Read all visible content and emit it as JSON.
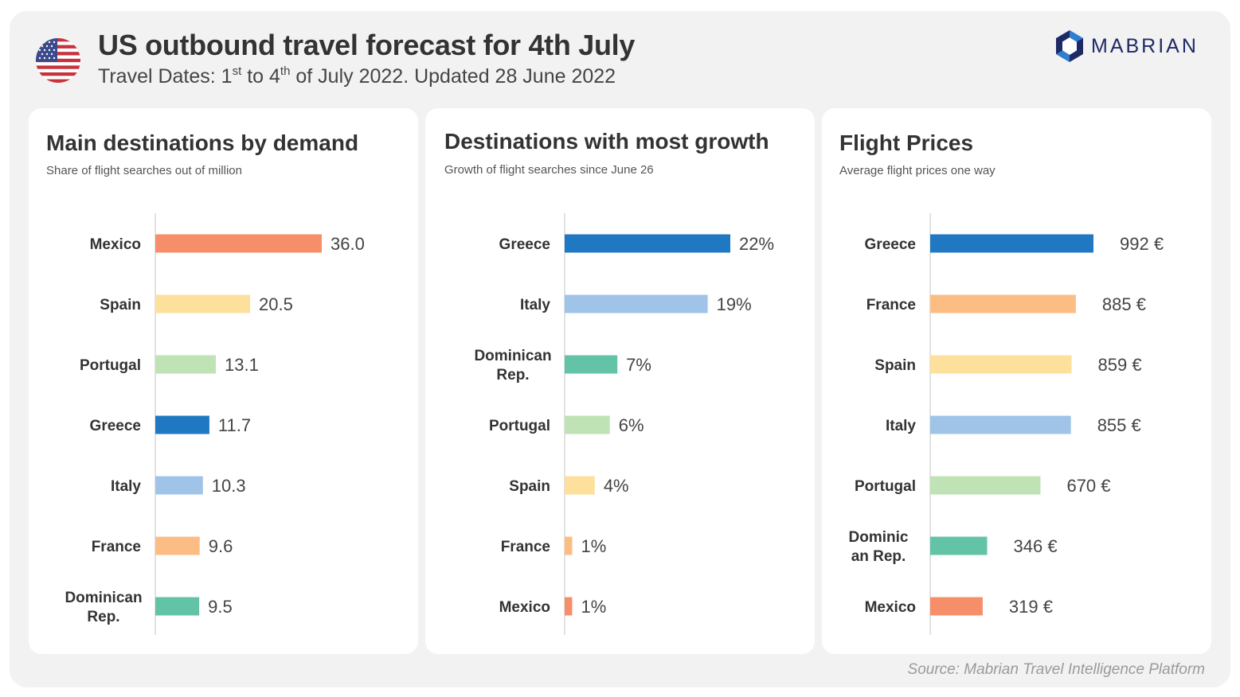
{
  "header": {
    "title": "US outbound travel forecast for 4th July",
    "subtitle_parts": [
      "Travel Dates: 1",
      "st",
      " to 4",
      "th",
      " of July 2022. Updated 28 June 2022"
    ],
    "brand": "MABRIAN",
    "flag_icon": "us-flag-icon",
    "brand_color": "#1e2a66"
  },
  "footer": {
    "source": "Source: Mabrian Travel Intelligence Platform"
  },
  "colors": {
    "Mexico": "#f68e6a",
    "Spain": "#fde09c",
    "Portugal": "#bfe3b4",
    "Greece": "#1f78c1",
    "Italy": "#a0c4e8",
    "France": "#fcbd84",
    "Dominican Rep.": "#62c3a6"
  },
  "chart_data": [
    {
      "type": "bar",
      "orientation": "horizontal",
      "title": "Main destinations by demand",
      "subtitle": "Share of flight searches out of million",
      "categories": [
        "Mexico",
        "Spain",
        "Portugal",
        "Greece",
        "Italy",
        "France",
        "Dominican Rep."
      ],
      "category_labels": [
        [
          "Mexico"
        ],
        [
          "Spain"
        ],
        [
          "Portugal"
        ],
        [
          "Greece"
        ],
        [
          "Italy"
        ],
        [
          "France"
        ],
        [
          "Dominican",
          "Rep."
        ]
      ],
      "values": [
        36.0,
        20.5,
        13.1,
        11.7,
        10.3,
        9.6,
        9.5
      ],
      "value_labels": [
        "36.0",
        "20.5",
        "13.1",
        "11.7",
        "10.3",
        "9.6",
        "9.5"
      ],
      "xlim": [
        0,
        36.0
      ],
      "grid": false,
      "legend": "none"
    },
    {
      "type": "bar",
      "orientation": "horizontal",
      "title": "Destinations with most growth",
      "subtitle": "Growth of flight searches since June 26",
      "categories": [
        "Greece",
        "Italy",
        "Dominican Rep.",
        "Portugal",
        "Spain",
        "France",
        "Mexico"
      ],
      "category_labels": [
        [
          "Greece"
        ],
        [
          "Italy"
        ],
        [
          "Dominican",
          "Rep."
        ],
        [
          "Portugal"
        ],
        [
          "Spain"
        ],
        [
          "France"
        ],
        [
          "Mexico"
        ]
      ],
      "values": [
        22,
        19,
        7,
        6,
        4,
        1,
        1
      ],
      "value_labels": [
        "22%",
        "19%",
        "7%",
        "6%",
        "4%",
        "1%",
        "1%"
      ],
      "xlim": [
        0,
        22
      ],
      "unit": "%",
      "grid": false,
      "legend": "none"
    },
    {
      "type": "bar",
      "orientation": "horizontal",
      "title": "Flight Prices",
      "subtitle": "Average flight prices one way",
      "categories": [
        "Greece",
        "France",
        "Spain",
        "Italy",
        "Portugal",
        "Dominican Rep.",
        "Mexico"
      ],
      "category_labels": [
        [
          "Greece"
        ],
        [
          "France"
        ],
        [
          "Spain"
        ],
        [
          "Italy"
        ],
        [
          "Portugal"
        ],
        [
          "Dominic",
          "an Rep."
        ],
        [
          "Mexico"
        ]
      ],
      "values": [
        992,
        885,
        859,
        855,
        670,
        346,
        319
      ],
      "value_labels": [
        "992 €",
        "885 €",
        "859 €",
        "855 €",
        "670 €",
        "346 €",
        "319 €"
      ],
      "xlim": [
        0,
        992
      ],
      "unit": "€",
      "grid": false,
      "legend": "none"
    }
  ]
}
